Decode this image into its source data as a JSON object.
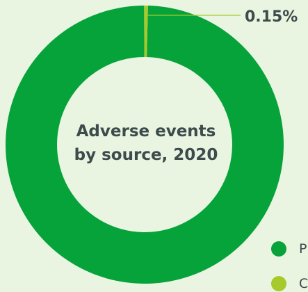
{
  "chart_data": {
    "type": "pie",
    "donut": true,
    "center_title_lines": [
      "Adverse events",
      "by source, 2020"
    ],
    "series": [
      {
        "name": "P",
        "value": 99.85,
        "color": "#06a33a"
      },
      {
        "name": "C",
        "value": 0.15,
        "color": "#a6c92c"
      }
    ],
    "annotations": [
      {
        "text": "0.15%",
        "series_index": 1
      }
    ],
    "legend_position": "bottom-right"
  },
  "colors": {
    "background": "#e9f5e1",
    "text": "#3c4b4b",
    "callout_line": "#a6c92c"
  }
}
